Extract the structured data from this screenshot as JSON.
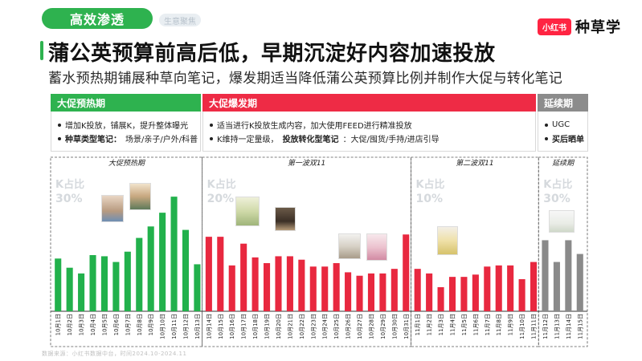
{
  "header": {
    "tab_active": "高效渗透",
    "tab_inactive": "生意聚焦",
    "brand_logo": "小红书",
    "brand_name": "种草学",
    "title": "蒲公英预算前高后低，早期沉淀好内容加速投放",
    "subtitle": "蓄水预热期铺展种草向笔记，爆发期适当降低蒲公英预算比例并制作大促与转化笔记"
  },
  "phases": [
    {
      "title": "大促预热期",
      "bullets": [
        "增加K投放，铺展K，提升整体曝光",
        "场景/亲子/户外/科普"
      ],
      "bold_prefix": "种草类型笔记：",
      "color": "#2eb24f"
    },
    {
      "title": "大促爆发期",
      "bullets": [
        "适当进行K投放生成内容，加大使用FEED进行精准投放",
        "K维持一定量级，",
        "投放转化型笔记",
        "：大促/囤货/手持/进店引导"
      ],
      "color": "#ee2b45"
    },
    {
      "title": "延续期",
      "bullets": [
        "UGC",
        "买后晒单"
      ],
      "color": "#8c8c8c"
    }
  ],
  "chart_data": {
    "type": "bar",
    "title": "",
    "xlabel": "",
    "ylabel": "",
    "grid": false,
    "segments": [
      {
        "name": "大促预热期",
        "k_label": "K占比",
        "k_value": "30%",
        "color": "#22b14c",
        "start": 0,
        "end": 13
      },
      {
        "name": "第一波双11",
        "k_label": "K占比",
        "k_value": "20%",
        "color": "#e8283f",
        "start": 13,
        "end": 31
      },
      {
        "name": "第二波双11",
        "k_label": "K占比",
        "k_value": "10%",
        "color": "#e8283f",
        "start": 31,
        "end": 42
      },
      {
        "name": "延续期",
        "k_label": "K占比",
        "k_value": "30%",
        "color": "#8a8a8a",
        "start": 42,
        "end": 46
      }
    ],
    "categories": [
      "10月1日",
      "10月2日",
      "10月3日",
      "10月4日",
      "10月5日",
      "10月6日",
      "10月7日",
      "10月8日",
      "10月9日",
      "10月10日",
      "10月11日",
      "10月12日",
      "10月13日",
      "10月14日",
      "10月15日",
      "10月16日",
      "10月17日",
      "10月18日",
      "10月19日",
      "10月20日",
      "10月21日",
      "10月22日",
      "10月23日",
      "10月24日",
      "10月25日",
      "10月26日",
      "10月27日",
      "10月28日",
      "10月29日",
      "10月30日",
      "10月31日",
      "11月1日",
      "11月2日",
      "11月3日",
      "11月4日",
      "11月5日",
      "11月6日",
      "11月7日",
      "11月8日",
      "11月9日",
      "11月10日",
      "11月11日",
      "11月12日",
      "11月13日",
      "11月14日",
      "11月15日"
    ],
    "values": [
      46,
      38,
      33,
      49,
      48,
      43,
      52,
      64,
      74,
      86,
      100,
      71,
      41,
      65,
      65,
      40,
      59,
      47,
      42,
      48,
      48,
      45,
      39,
      39,
      42,
      34,
      31,
      33,
      33,
      37,
      67,
      37,
      33,
      21,
      30,
      30,
      32,
      39,
      40,
      40,
      28,
      43,
      62,
      43,
      62,
      50
    ],
    "ylim": [
      0,
      105
    ]
  },
  "footer": "数据来源：小红书数据中台，时间2024.10-2024.11"
}
